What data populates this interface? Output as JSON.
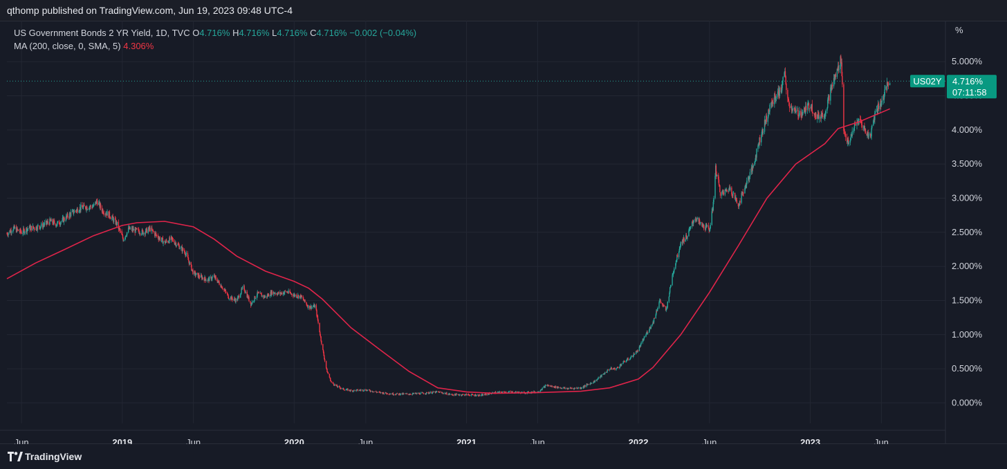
{
  "publish_line": "qthomp published on TradingView.com, Jun 19, 2023 09:48 UTC-4",
  "legend": {
    "symbol_line": "US Government Bonds 2 YR Yield, 1D, TVC",
    "o_label": "O",
    "o_value": "4.716%",
    "h_label": "H",
    "h_value": "4.716%",
    "l_label": "L",
    "l_value": "4.716%",
    "c_label": "C",
    "c_value": "4.716%",
    "change": "−0.002 (−0.04%)",
    "ma_label": "MA (200, close, 0, SMA, 5)",
    "ma_value": "4.306%"
  },
  "price_label": {
    "symbol": "US02Y",
    "price": "4.716%",
    "countdown": "07:11:58"
  },
  "footer": {
    "brand": "TradingView"
  },
  "colors": {
    "background": "#171b26",
    "grid": "#232733",
    "up": "#26a69a",
    "down": "#f23645",
    "ma": "#e0244a",
    "text": "#d1d4dc"
  },
  "chart_data": {
    "type": "candlestick",
    "title": "US Government Bonds 2 YR Yield, 1D, TVC",
    "ylabel": "%",
    "ylim": [
      -0.3,
      5.6
    ],
    "y_ticks": [
      0,
      0.5,
      1,
      1.5,
      2,
      2.5,
      3,
      3.5,
      4,
      4.5,
      5
    ],
    "y_tick_labels": [
      "0.000%",
      "0.500%",
      "1.000%",
      "1.500%",
      "2.000%",
      "2.500%",
      "3.000%",
      "3.500%",
      "4.000%",
      "4.500%",
      "5.000%"
    ],
    "x_ticks": [
      {
        "date": "2018-06-01",
        "label": "Jun",
        "bold": false
      },
      {
        "date": "2019-01-01",
        "label": "2019",
        "bold": true
      },
      {
        "date": "2019-06-01",
        "label": "Jun",
        "bold": false
      },
      {
        "date": "2020-01-01",
        "label": "2020",
        "bold": true
      },
      {
        "date": "2020-06-01",
        "label": "Jun",
        "bold": false
      },
      {
        "date": "2021-01-01",
        "label": "2021",
        "bold": true
      },
      {
        "date": "2021-06-01",
        "label": "Jun",
        "bold": false
      },
      {
        "date": "2022-01-01",
        "label": "2022",
        "bold": true
      },
      {
        "date": "2022-06-01",
        "label": "Jun",
        "bold": false
      },
      {
        "date": "2023-01-01",
        "label": "2023",
        "bold": true
      },
      {
        "date": "2023-06-01",
        "label": "Jun",
        "bold": false
      }
    ],
    "xlim": [
      "2018-05-01",
      "2023-10-15"
    ],
    "series": [
      {
        "name": "US Government Bonds 2 YR Yield",
        "kind": "close",
        "points": [
          [
            "2018-05-01",
            2.48
          ],
          [
            "2018-05-15",
            2.56
          ],
          [
            "2018-06-01",
            2.5
          ],
          [
            "2018-06-15",
            2.56
          ],
          [
            "2018-07-01",
            2.57
          ],
          [
            "2018-07-15",
            2.6
          ],
          [
            "2018-08-01",
            2.66
          ],
          [
            "2018-08-15",
            2.62
          ],
          [
            "2018-09-01",
            2.7
          ],
          [
            "2018-09-15",
            2.78
          ],
          [
            "2018-10-01",
            2.85
          ],
          [
            "2018-10-15",
            2.87
          ],
          [
            "2018-11-01",
            2.88
          ],
          [
            "2018-11-08",
            2.96
          ],
          [
            "2018-11-20",
            2.82
          ],
          [
            "2018-12-05",
            2.75
          ],
          [
            "2018-12-20",
            2.63
          ],
          [
            "2019-01-03",
            2.4
          ],
          [
            "2019-01-15",
            2.55
          ],
          [
            "2019-02-01",
            2.52
          ],
          [
            "2019-02-15",
            2.5
          ],
          [
            "2019-03-01",
            2.55
          ],
          [
            "2019-03-15",
            2.45
          ],
          [
            "2019-04-01",
            2.35
          ],
          [
            "2019-04-15",
            2.4
          ],
          [
            "2019-05-01",
            2.3
          ],
          [
            "2019-05-15",
            2.2
          ],
          [
            "2019-06-01",
            1.9
          ],
          [
            "2019-06-15",
            1.85
          ],
          [
            "2019-07-01",
            1.8
          ],
          [
            "2019-07-15",
            1.85
          ],
          [
            "2019-08-01",
            1.7
          ],
          [
            "2019-08-15",
            1.55
          ],
          [
            "2019-09-01",
            1.5
          ],
          [
            "2019-09-15",
            1.7
          ],
          [
            "2019-10-01",
            1.45
          ],
          [
            "2019-10-15",
            1.6
          ],
          [
            "2019-11-01",
            1.55
          ],
          [
            "2019-11-15",
            1.62
          ],
          [
            "2019-12-01",
            1.6
          ],
          [
            "2019-12-15",
            1.63
          ],
          [
            "2020-01-01",
            1.58
          ],
          [
            "2020-01-15",
            1.56
          ],
          [
            "2020-02-01",
            1.4
          ],
          [
            "2020-02-15",
            1.42
          ],
          [
            "2020-03-01",
            0.8
          ],
          [
            "2020-03-10",
            0.48
          ],
          [
            "2020-03-20",
            0.3
          ],
          [
            "2020-04-01",
            0.24
          ],
          [
            "2020-04-15",
            0.2
          ],
          [
            "2020-05-01",
            0.18
          ],
          [
            "2020-06-01",
            0.19
          ],
          [
            "2020-07-01",
            0.15
          ],
          [
            "2020-08-01",
            0.13
          ],
          [
            "2020-09-01",
            0.13
          ],
          [
            "2020-10-01",
            0.14
          ],
          [
            "2020-11-01",
            0.16
          ],
          [
            "2020-12-01",
            0.12
          ],
          [
            "2021-01-01",
            0.12
          ],
          [
            "2021-02-01",
            0.11
          ],
          [
            "2021-03-01",
            0.15
          ],
          [
            "2021-04-01",
            0.16
          ],
          [
            "2021-05-01",
            0.15
          ],
          [
            "2021-06-01",
            0.16
          ],
          [
            "2021-06-20",
            0.26
          ],
          [
            "2021-07-01",
            0.24
          ],
          [
            "2021-08-01",
            0.21
          ],
          [
            "2021-09-01",
            0.22
          ],
          [
            "2021-10-01",
            0.32
          ],
          [
            "2021-10-15",
            0.4
          ],
          [
            "2021-11-01",
            0.5
          ],
          [
            "2021-11-15",
            0.5
          ],
          [
            "2021-12-01",
            0.6
          ],
          [
            "2021-12-15",
            0.66
          ],
          [
            "2022-01-01",
            0.78
          ],
          [
            "2022-01-15",
            0.98
          ],
          [
            "2022-02-01",
            1.18
          ],
          [
            "2022-02-15",
            1.5
          ],
          [
            "2022-03-01",
            1.35
          ],
          [
            "2022-03-15",
            1.9
          ],
          [
            "2022-04-01",
            2.35
          ],
          [
            "2022-04-15",
            2.45
          ],
          [
            "2022-05-01",
            2.72
          ],
          [
            "2022-05-15",
            2.6
          ],
          [
            "2022-06-01",
            2.55
          ],
          [
            "2022-06-08",
            2.85
          ],
          [
            "2022-06-14",
            3.43
          ],
          [
            "2022-06-25",
            3.05
          ],
          [
            "2022-07-15",
            3.15
          ],
          [
            "2022-08-01",
            2.9
          ],
          [
            "2022-08-20",
            3.25
          ],
          [
            "2022-09-01",
            3.45
          ],
          [
            "2022-09-15",
            3.85
          ],
          [
            "2022-10-01",
            4.2
          ],
          [
            "2022-10-15",
            4.45
          ],
          [
            "2022-11-01",
            4.6
          ],
          [
            "2022-11-07",
            4.85
          ],
          [
            "2022-11-15",
            4.4
          ],
          [
            "2022-12-01",
            4.25
          ],
          [
            "2022-12-15",
            4.25
          ],
          [
            "2023-01-01",
            4.38
          ],
          [
            "2023-01-15",
            4.18
          ],
          [
            "2023-02-01",
            4.25
          ],
          [
            "2023-02-15",
            4.62
          ],
          [
            "2023-03-01",
            4.9
          ],
          [
            "2023-03-08",
            5.06
          ],
          [
            "2023-03-13",
            4.0
          ],
          [
            "2023-03-24",
            3.77
          ],
          [
            "2023-04-01",
            4.0
          ],
          [
            "2023-04-15",
            4.15
          ],
          [
            "2023-05-01",
            3.95
          ],
          [
            "2023-05-08",
            3.9
          ],
          [
            "2023-05-20",
            4.3
          ],
          [
            "2023-06-01",
            4.4
          ],
          [
            "2023-06-10",
            4.6
          ],
          [
            "2023-06-19",
            4.72
          ]
        ]
      },
      {
        "name": "MA (200, close, 0, SMA, 5)",
        "kind": "line",
        "points": [
          [
            "2018-05-01",
            1.82
          ],
          [
            "2018-07-01",
            2.05
          ],
          [
            "2018-09-01",
            2.25
          ],
          [
            "2018-11-01",
            2.45
          ],
          [
            "2019-01-01",
            2.6
          ],
          [
            "2019-02-01",
            2.64
          ],
          [
            "2019-04-01",
            2.66
          ],
          [
            "2019-06-01",
            2.58
          ],
          [
            "2019-07-15",
            2.4
          ],
          [
            "2019-09-01",
            2.15
          ],
          [
            "2019-11-01",
            1.93
          ],
          [
            "2020-01-01",
            1.78
          ],
          [
            "2020-02-01",
            1.68
          ],
          [
            "2020-03-01",
            1.52
          ],
          [
            "2020-05-01",
            1.1
          ],
          [
            "2020-07-01",
            0.78
          ],
          [
            "2020-09-01",
            0.46
          ],
          [
            "2020-11-01",
            0.22
          ],
          [
            "2021-01-01",
            0.16
          ],
          [
            "2021-03-01",
            0.14
          ],
          [
            "2021-06-01",
            0.15
          ],
          [
            "2021-09-01",
            0.17
          ],
          [
            "2021-11-01",
            0.22
          ],
          [
            "2022-01-01",
            0.35
          ],
          [
            "2022-02-01",
            0.52
          ],
          [
            "2022-04-01",
            1.0
          ],
          [
            "2022-06-01",
            1.62
          ],
          [
            "2022-08-01",
            2.3
          ],
          [
            "2022-10-01",
            3.0
          ],
          [
            "2022-12-01",
            3.5
          ],
          [
            "2023-02-01",
            3.8
          ],
          [
            "2023-03-01",
            4.02
          ],
          [
            "2023-04-15",
            4.12
          ],
          [
            "2023-06-19",
            4.31
          ]
        ]
      }
    ],
    "current_price_line": 4.716
  }
}
